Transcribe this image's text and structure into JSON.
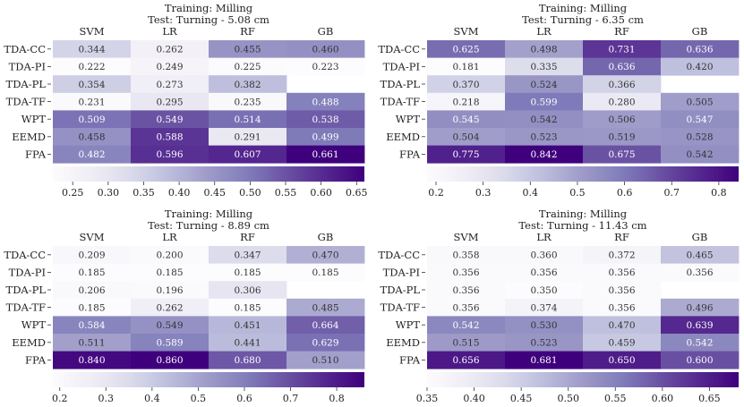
{
  "chart_data": [
    {
      "type": "heatmap",
      "title_line1": "Training: Milling",
      "title_line2": "Test: Turning - 5.08 cm",
      "columns": [
        "SVM",
        "LR",
        "RF",
        "GB"
      ],
      "rows": [
        "TDA-CC",
        "TDA-PI",
        "TDA-PL",
        "TDA-TF",
        "WPT",
        "EEMD",
        "FPA"
      ],
      "values": [
        [
          0.344,
          0.262,
          0.455,
          0.46
        ],
        [
          0.222,
          0.249,
          0.225,
          0.223
        ],
        [
          0.354,
          0.273,
          0.382,
          null
        ],
        [
          0.231,
          0.295,
          0.235,
          0.488
        ],
        [
          0.509,
          0.549,
          0.514,
          0.538
        ],
        [
          0.458,
          0.588,
          0.291,
          0.499
        ],
        [
          0.482,
          0.596,
          0.607,
          0.661
        ]
      ],
      "cell_labels": [
        [
          "0.344",
          "0.262",
          "0.455",
          "0.460"
        ],
        [
          "0.222",
          "0.249",
          "0.225",
          "0.223"
        ],
        [
          "0.354",
          "0.273",
          "0.382",
          ""
        ],
        [
          "0.231",
          "0.295",
          "0.235",
          "0.488"
        ],
        [
          "0.509",
          "0.549",
          "0.514",
          "0.538"
        ],
        [
          "0.458",
          "0.588",
          "0.291",
          "0.499"
        ],
        [
          "0.482",
          "0.596",
          "0.607",
          "0.661"
        ]
      ],
      "color_range": [
        0.222,
        0.661
      ],
      "colorbar_ticks": [
        "0.25",
        "0.30",
        "0.35",
        "0.40",
        "0.45",
        "0.50",
        "0.55",
        "0.60",
        "0.65"
      ],
      "colormap": "Purples"
    },
    {
      "type": "heatmap",
      "title_line1": "Training: Milling",
      "title_line2": "Test: Turning - 6.35 cm",
      "columns": [
        "SVM",
        "LR",
        "RF",
        "GB"
      ],
      "rows": [
        "TDA-CC",
        "TDA-PI",
        "TDA-PL",
        "TDA-TF",
        "WPT",
        "EEMD",
        "FPA"
      ],
      "values": [
        [
          0.625,
          0.498,
          0.731,
          0.636
        ],
        [
          0.181,
          0.335,
          0.636,
          0.42
        ],
        [
          0.37,
          0.524,
          0.366,
          null
        ],
        [
          0.218,
          0.599,
          0.28,
          0.505
        ],
        [
          0.545,
          0.542,
          0.506,
          0.547
        ],
        [
          0.504,
          0.523,
          0.519,
          0.528
        ],
        [
          0.775,
          0.842,
          0.675,
          0.542
        ]
      ],
      "cell_labels": [
        [
          "0.625",
          "0.498",
          "0.731",
          "0.636"
        ],
        [
          "0.181",
          "0.335",
          "0.636",
          "0.420"
        ],
        [
          "0.370",
          "0.524",
          "0.366",
          ""
        ],
        [
          "0.218",
          "0.599",
          "0.280",
          "0.505"
        ],
        [
          "0.545",
          "0.542",
          "0.506",
          "0.547"
        ],
        [
          "0.504",
          "0.523",
          "0.519",
          "0.528"
        ],
        [
          "0.775",
          "0.842",
          "0.675",
          "0.542"
        ]
      ],
      "color_range": [
        0.181,
        0.842
      ],
      "colorbar_ticks": [
        "0.2",
        "0.3",
        "0.4",
        "0.5",
        "0.6",
        "0.7",
        "0.8"
      ],
      "colormap": "Purples"
    },
    {
      "type": "heatmap",
      "title_line1": "Training: Milling",
      "title_line2": "Test: Turning - 8.89 cm",
      "columns": [
        "SVM",
        "LR",
        "RF",
        "GB"
      ],
      "rows": [
        "TDA-CC",
        "TDA-PI",
        "TDA-PL",
        "TDA-TF",
        "WPT",
        "EEMD",
        "FPA"
      ],
      "values": [
        [
          0.209,
          0.2,
          0.347,
          0.47
        ],
        [
          0.185,
          0.185,
          0.185,
          0.185
        ],
        [
          0.206,
          0.196,
          0.306,
          null
        ],
        [
          0.185,
          0.262,
          0.185,
          0.485
        ],
        [
          0.584,
          0.549,
          0.451,
          0.664
        ],
        [
          0.511,
          0.589,
          0.441,
          0.629
        ],
        [
          0.84,
          0.86,
          0.68,
          0.51
        ]
      ],
      "cell_labels": [
        [
          "0.209",
          "0.200",
          "0.347",
          "0.470"
        ],
        [
          "0.185",
          "0.185",
          "0.185",
          "0.185"
        ],
        [
          "0.206",
          "0.196",
          "0.306",
          ""
        ],
        [
          "0.185",
          "0.262",
          "0.185",
          "0.485"
        ],
        [
          "0.584",
          "0.549",
          "0.451",
          "0.664"
        ],
        [
          "0.511",
          "0.589",
          "0.441",
          "0.629"
        ],
        [
          "0.840",
          "0.860",
          "0.680",
          "0.510"
        ]
      ],
      "color_range": [
        0.185,
        0.86
      ],
      "colorbar_ticks": [
        "0.2",
        "0.3",
        "0.4",
        "0.5",
        "0.6",
        "0.7",
        "0.8"
      ],
      "colormap": "Purples"
    },
    {
      "type": "heatmap",
      "title_line1": "Training: Milling",
      "title_line2": "Test: Turning - 11.43 cm",
      "columns": [
        "SVM",
        "LR",
        "RF",
        "GB"
      ],
      "rows": [
        "TDA-CC",
        "TDA-PI",
        "TDA-PL",
        "TDA-TF",
        "WPT",
        "EEMD",
        "FPA"
      ],
      "values": [
        [
          0.358,
          0.36,
          0.372,
          0.465
        ],
        [
          0.356,
          0.356,
          0.356,
          0.356
        ],
        [
          0.356,
          0.35,
          0.356,
          null
        ],
        [
          0.356,
          0.374,
          0.356,
          0.496
        ],
        [
          0.542,
          0.53,
          0.47,
          0.639
        ],
        [
          0.515,
          0.523,
          0.459,
          0.542
        ],
        [
          0.656,
          0.681,
          0.65,
          0.6
        ]
      ],
      "cell_labels": [
        [
          "0.358",
          "0.360",
          "0.372",
          "0.465"
        ],
        [
          "0.356",
          "0.356",
          "0.356",
          "0.356"
        ],
        [
          "0.356",
          "0.350",
          "0.356",
          ""
        ],
        [
          "0.356",
          "0.374",
          "0.356",
          "0.496"
        ],
        [
          "0.542",
          "0.530",
          "0.470",
          "0.639"
        ],
        [
          "0.515",
          "0.523",
          "0.459",
          "0.542"
        ],
        [
          "0.656",
          "0.681",
          "0.650",
          "0.600"
        ]
      ],
      "color_range": [
        0.35,
        0.681
      ],
      "colorbar_ticks": [
        "0.35",
        "0.40",
        "0.45",
        "0.50",
        "0.55",
        "0.60",
        "0.65"
      ],
      "colormap": "Purples"
    }
  ]
}
